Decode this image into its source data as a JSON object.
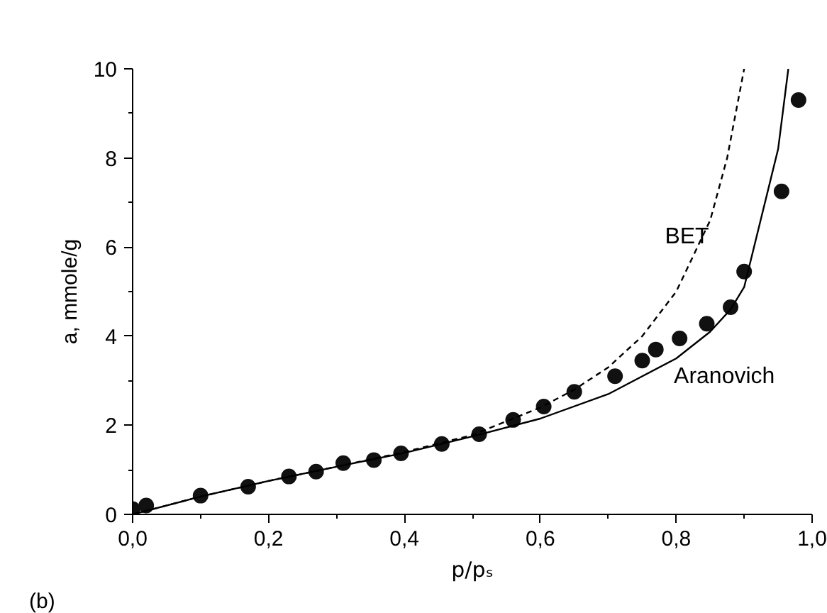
{
  "chart_data": {
    "type": "line",
    "xlabel": "p/pₛ",
    "ylabel": "a, mmole/g",
    "xlim": [
      0,
      1.0
    ],
    "ylim": [
      0,
      10
    ],
    "xticks": [
      {
        "value": 0,
        "label": "0,0"
      },
      {
        "value": 0.1,
        "label": null
      },
      {
        "value": 0.2,
        "label": "0,2"
      },
      {
        "value": 0.3,
        "label": null
      },
      {
        "value": 0.4,
        "label": "0,4"
      },
      {
        "value": 0.5,
        "label": null
      },
      {
        "value": 0.6,
        "label": "0,6"
      },
      {
        "value": 0.7,
        "label": null
      },
      {
        "value": 0.8,
        "label": "0,8"
      },
      {
        "value": 0.9,
        "label": null
      },
      {
        "value": 1.0,
        "label": "1,0"
      }
    ],
    "yticks": [
      0,
      {
        "value": 1,
        "label": null
      },
      2,
      {
        "value": 3,
        "label": null
      },
      4,
      {
        "value": 5,
        "label": null
      },
      6,
      {
        "value": 7,
        "label": null
      },
      8,
      {
        "value": 9,
        "label": null
      },
      10
    ],
    "grid": false,
    "series": [
      {
        "type": "scatter",
        "marker": "circle",
        "color": "#111111",
        "x": [
          0.0,
          0.02,
          0.1,
          0.17,
          0.23,
          0.27,
          0.31,
          0.355,
          0.395,
          0.455,
          0.51,
          0.56,
          0.605,
          0.65,
          0.71,
          0.75,
          0.77,
          0.805,
          0.845,
          0.88,
          0.9,
          0.955,
          0.98
        ],
        "values": [
          0.12,
          0.2,
          0.42,
          0.62,
          0.85,
          0.96,
          1.15,
          1.22,
          1.37,
          1.58,
          1.8,
          2.12,
          2.42,
          2.75,
          3.1,
          3.45,
          3.7,
          3.95,
          4.28,
          4.65,
          5.45,
          7.25,
          9.3
        ]
      },
      {
        "name": "BET",
        "line_style": "dashed",
        "color": "#000000",
        "x": [
          0,
          0.1,
          0.2,
          0.3,
          0.4,
          0.5,
          0.6,
          0.65,
          0.7,
          0.75,
          0.8,
          0.85,
          0.875,
          0.9
        ],
        "values": [
          0,
          0.4,
          0.75,
          1.07,
          1.4,
          1.78,
          2.4,
          2.8,
          3.3,
          4.0,
          5.0,
          6.6,
          8.0,
          10
        ]
      },
      {
        "name": "Aranovich",
        "line_style": "solid",
        "color": "#000000",
        "x": [
          0,
          0.1,
          0.2,
          0.3,
          0.4,
          0.5,
          0.6,
          0.7,
          0.8,
          0.85,
          0.88,
          0.9,
          0.95,
          0.965
        ],
        "values": [
          0,
          0.4,
          0.75,
          1.07,
          1.38,
          1.75,
          2.15,
          2.7,
          3.5,
          4.1,
          4.6,
          5.1,
          8.2,
          10
        ]
      }
    ],
    "annotations": [
      "(b)"
    ]
  }
}
